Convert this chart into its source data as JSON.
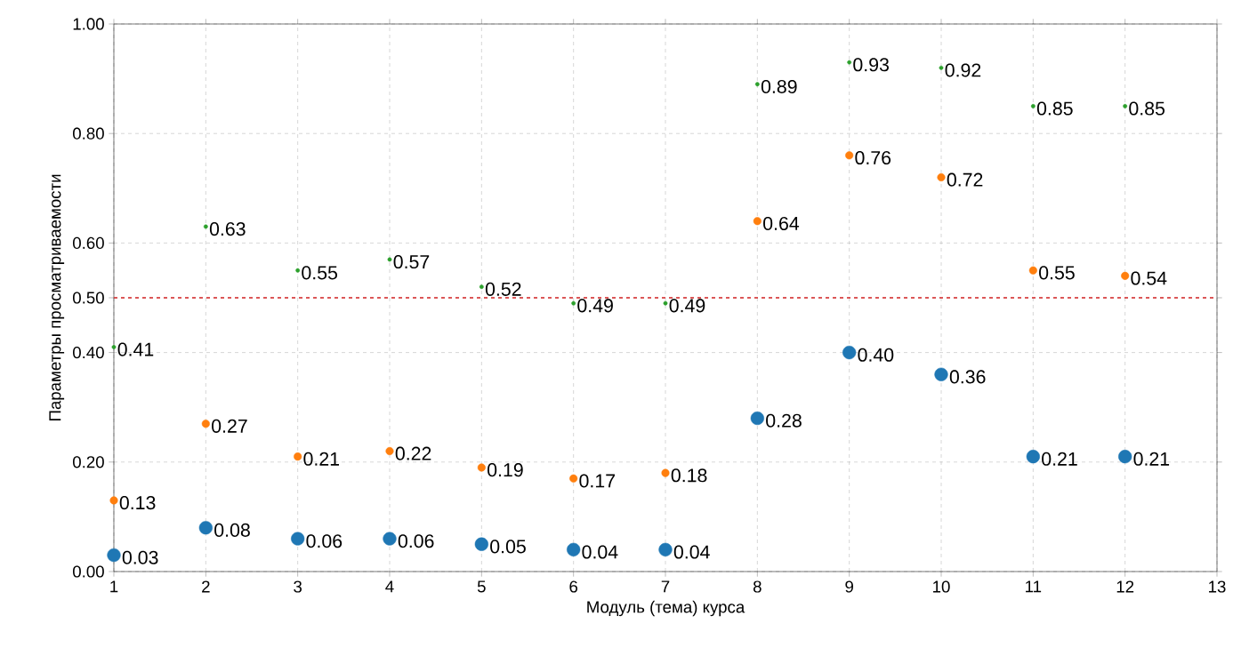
{
  "chart_data": {
    "type": "scatter",
    "xlabel": "Модуль (тема) курса",
    "ylabel": "Параметры просматриваемости",
    "x": [
      1,
      2,
      3,
      4,
      5,
      6,
      7,
      8,
      9,
      10,
      11,
      12
    ],
    "series": [
      {
        "color": "#1f77b4",
        "values": [
          0.03,
          0.08,
          0.06,
          0.06,
          0.05,
          0.04,
          0.04,
          0.28,
          0.4,
          0.36,
          0.21,
          0.21
        ],
        "value_labels": [
          "0.03",
          "0.08",
          "0.06",
          "0.06",
          "0.05",
          "0.04",
          "0.04",
          "0.28",
          "0.40",
          "0.36",
          "0.21",
          "0.21"
        ]
      },
      {
        "color": "#ff7f0e",
        "values": [
          0.13,
          0.27,
          0.21,
          0.22,
          0.19,
          0.17,
          0.18,
          0.64,
          0.76,
          0.72,
          0.55,
          0.54
        ],
        "value_labels": [
          "0.13",
          "0.27",
          "0.21",
          "0.22",
          "0.19",
          "0.17",
          "0.18",
          "0.64",
          "0.76",
          "0.72",
          "0.55",
          "0.54"
        ]
      },
      {
        "color": "#2ca02c",
        "values": [
          0.41,
          0.63,
          0.55,
          0.57,
          0.52,
          0.49,
          0.49,
          0.89,
          0.93,
          0.92,
          0.85,
          0.85
        ],
        "value_labels": [
          "0.41",
          "0.63",
          "0.55",
          "0.57",
          "0.52",
          "0.49",
          "0.49",
          "0.89",
          "0.93",
          "0.92",
          "0.85",
          "0.85"
        ]
      }
    ],
    "xlim": [
      1,
      13
    ],
    "ylim": [
      0,
      1
    ],
    "xticks": [
      1,
      2,
      3,
      4,
      5,
      6,
      7,
      8,
      9,
      10,
      11,
      12,
      13
    ],
    "yticks": [
      {
        "value": 0,
        "label": "0.00"
      },
      {
        "value": 0.2,
        "label": "0.20"
      },
      {
        "value": 0.4,
        "label": "0.40"
      },
      {
        "value": 0.5,
        "label": "0.50"
      },
      {
        "value": 0.6,
        "label": "0.60"
      },
      {
        "value": 0.8,
        "label": "0.80"
      },
      {
        "value": 1,
        "label": "1.00"
      }
    ],
    "ref_lines": [
      {
        "axis": "y",
        "value": 0.5,
        "color": "#d62728",
        "line_style": "dashed"
      }
    ],
    "grid": true
  }
}
